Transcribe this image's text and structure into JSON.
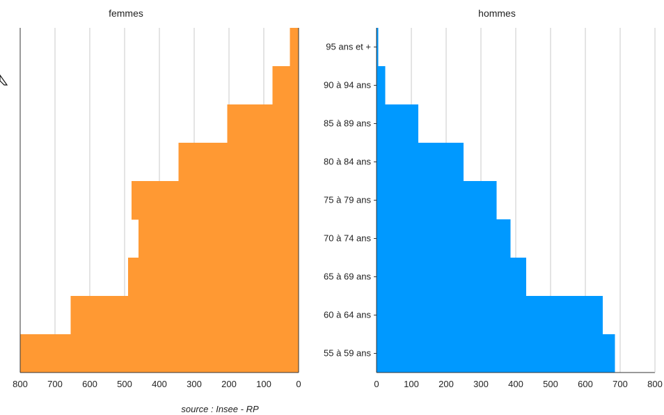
{
  "chart_data": {
    "type": "bar",
    "orientation": "horizontal",
    "subtype": "population-pyramid",
    "categories": [
      "55 à 59 ans",
      "60 à 64 ans",
      "65 à 69 ans",
      "70 à 74 ans",
      "75 à 79 ans",
      "80 à 84 ans",
      "85 à 89 ans",
      "90 à 94 ans",
      "95 ans et +"
    ],
    "series": [
      {
        "name": "femmes",
        "color": "#FF9933",
        "values": [
          800,
          655,
          490,
          460,
          480,
          345,
          205,
          75,
          25
        ]
      },
      {
        "name": "hommes",
        "color": "#0099FF",
        "values": [
          685,
          650,
          430,
          385,
          345,
          250,
          120,
          25,
          5
        ]
      }
    ],
    "xlim": [
      0,
      800
    ],
    "xticks": [
      0,
      100,
      200,
      300,
      400,
      500,
      600,
      700,
      800
    ],
    "grid": true,
    "source": "source : Insee - RP"
  }
}
